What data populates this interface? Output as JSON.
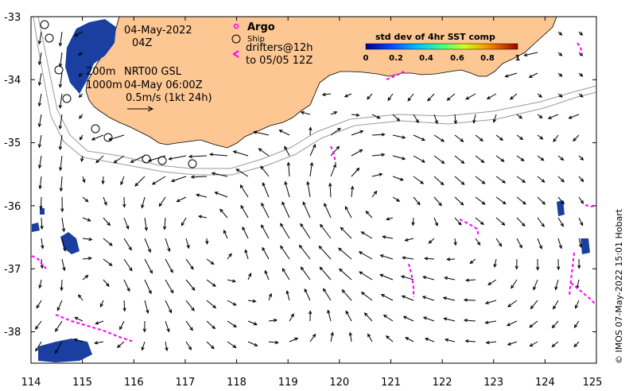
{
  "map": {
    "title_date": "04-May-2022",
    "title_hour": "04Z",
    "depth_label_1": "200m",
    "depth_label_2": "1000m",
    "product_label": "NRT00 GSL",
    "product_time": "04-May 06:00Z",
    "scale_label": "0.5m/s (1kt 24h)",
    "argo_label": "Argo",
    "ship_label": "Ship",
    "drifters_label_1": "drifters@12h",
    "drifters_label_2": "to 05/05 12Z",
    "colorbar_title": "std dev of 4hr SST comp",
    "colorbar_ticks": [
      "0",
      "0.2",
      "0.4",
      "0.6",
      "0.8",
      "1"
    ],
    "credit": "© IMOS 07-May-2022 15:01 Hobart",
    "x_ticks": [
      "114",
      "115",
      "116",
      "117",
      "118",
      "119",
      "120",
      "121",
      "122",
      "123",
      "124",
      "125"
    ],
    "y_ticks": [
      "-33",
      "-34",
      "-35",
      "-36",
      "-37",
      "-38"
    ],
    "x_range": [
      114,
      125
    ],
    "y_range": [
      -38.5,
      -33
    ],
    "colors": {
      "land": "#fdc793",
      "argo": "#ff00ff",
      "drifter": "#ff00ff",
      "sst_patch": "#1a3fa0",
      "isobath": "#9a9a9a"
    },
    "icons": [
      "argo-marker-icon",
      "ship-marker-icon",
      "drifter-arrow-icon",
      "scale-arrow-icon"
    ]
  }
}
